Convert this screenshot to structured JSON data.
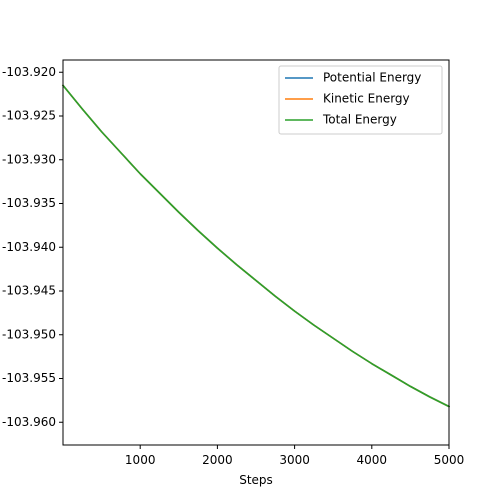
{
  "chart_data": {
    "type": "line",
    "title": "",
    "xlabel": "Steps",
    "ylabel": "",
    "xlim": [
      0,
      5000
    ],
    "ylim": [
      -103.9626,
      -103.9186
    ],
    "x_ticks": [
      1000,
      2000,
      3000,
      4000,
      5000
    ],
    "x_tick_labels": [
      "1000",
      "2000",
      "3000",
      "4000",
      "5000"
    ],
    "y_ticks": [
      -103.92,
      -103.925,
      -103.93,
      -103.935,
      -103.94,
      -103.945,
      -103.95,
      -103.955,
      -103.96
    ],
    "y_tick_labels": [
      "-103.920",
      "-103.925",
      "-103.930",
      "-103.935",
      "-103.940",
      "-103.945",
      "-103.950",
      "-103.955",
      "-103.960"
    ],
    "grid": false,
    "legend_position": "top-right",
    "x": [
      0,
      250,
      500,
      750,
      1000,
      1250,
      1500,
      1750,
      2000,
      2250,
      2500,
      2750,
      3000,
      3250,
      3500,
      3750,
      4000,
      4250,
      4500,
      4750,
      5000
    ],
    "series": [
      {
        "name": "Potential Energy",
        "color": "#1f77b4",
        "values": [
          -103.9215,
          -103.9242,
          -103.9268,
          -103.9292,
          -103.9316,
          -103.9338,
          -103.936,
          -103.9381,
          -103.9401,
          -103.942,
          -103.9438,
          -103.9456,
          -103.9473,
          -103.9489,
          -103.9504,
          -103.9519,
          -103.9533,
          -103.9546,
          -103.9559,
          -103.9571,
          -103.9582
        ]
      },
      {
        "name": "Kinetic Energy",
        "color": "#ff7f0e",
        "values": [
          -103.9215,
          -103.9242,
          -103.9268,
          -103.9292,
          -103.9316,
          -103.9338,
          -103.936,
          -103.9381,
          -103.9401,
          -103.942,
          -103.9438,
          -103.9456,
          -103.9473,
          -103.9489,
          -103.9504,
          -103.9519,
          -103.9533,
          -103.9546,
          -103.9559,
          -103.9571,
          -103.9582
        ]
      },
      {
        "name": "Total Energy",
        "color": "#2ca02c",
        "values": [
          -103.9215,
          -103.9242,
          -103.9268,
          -103.9292,
          -103.9316,
          -103.9338,
          -103.936,
          -103.9381,
          -103.9401,
          -103.942,
          -103.9438,
          -103.9456,
          -103.9473,
          -103.9489,
          -103.9504,
          -103.9519,
          -103.9533,
          -103.9546,
          -103.9559,
          -103.9571,
          -103.9582
        ]
      }
    ]
  }
}
